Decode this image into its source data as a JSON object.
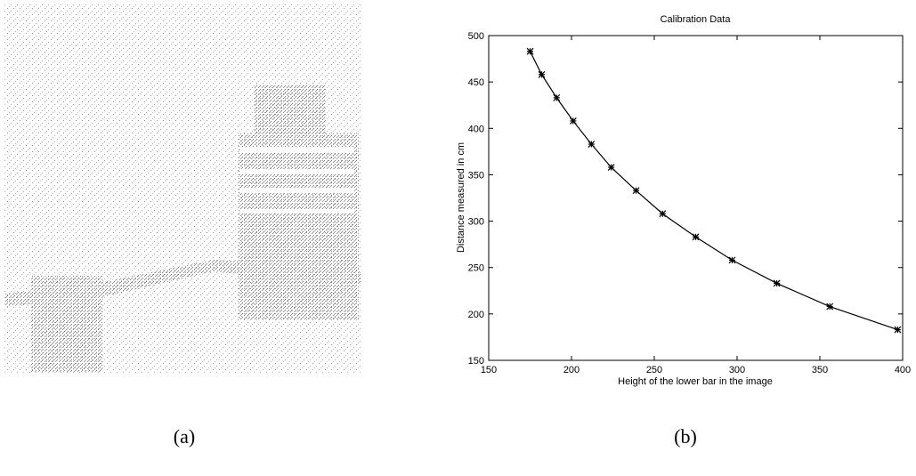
{
  "chart_data": {
    "type": "line",
    "title": "Calibration Data",
    "x_label": "Height of the lower bar in the image",
    "y_label": "Distance measured in cm",
    "x": [
      175,
      182,
      191,
      201,
      212,
      224,
      239,
      255,
      275,
      297,
      324,
      356,
      397
    ],
    "values": [
      483,
      458,
      433,
      408,
      383,
      358,
      333,
      308,
      283,
      258,
      233,
      208,
      183
    ],
    "color": "#000000",
    "markers": true,
    "xlim": [
      150,
      400
    ],
    "xticks": [
      150,
      200,
      250,
      300,
      350,
      400
    ],
    "ylim": [
      150,
      500
    ],
    "yticks": [
      150,
      200,
      250,
      300,
      350,
      400,
      450,
      500
    ],
    "grid": false
  },
  "captions": [
    "(a)",
    "(b)"
  ]
}
